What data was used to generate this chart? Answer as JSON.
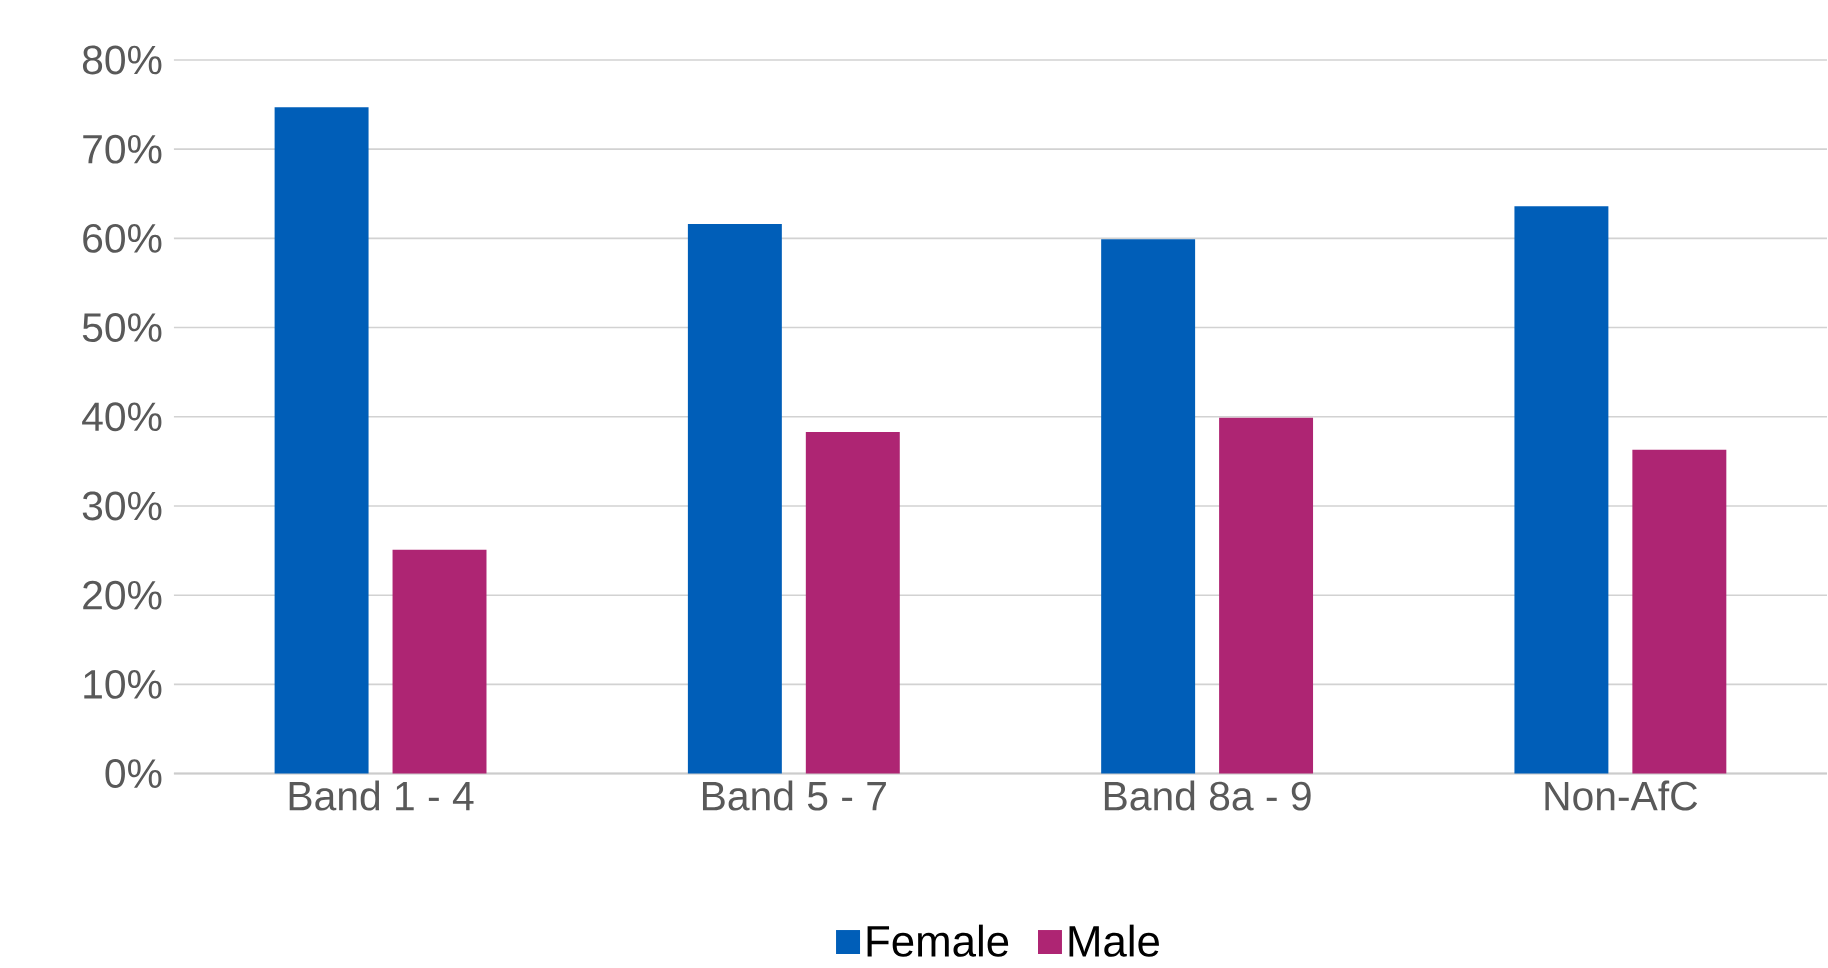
{
  "chart_data": {
    "type": "bar",
    "categories": [
      "Band 1 - 4",
      "Band 5 - 7",
      "Band 8a - 9",
      "Non-AfC"
    ],
    "series": [
      {
        "name": "Female",
        "color": "#005eb8",
        "values": [
          74.7,
          61.6,
          59.9,
          63.6
        ]
      },
      {
        "name": "Male",
        "color": "#ae2573",
        "values": [
          25.1,
          38.3,
          39.9,
          36.3
        ]
      }
    ],
    "ylim": [
      0,
      80
    ],
    "yticks": [
      {
        "value": 0,
        "label": "0%"
      },
      {
        "value": 10,
        "label": "10%"
      },
      {
        "value": 20,
        "label": "20%"
      },
      {
        "value": 30,
        "label": "30%"
      },
      {
        "value": 40,
        "label": "40%"
      },
      {
        "value": 50,
        "label": "50%"
      },
      {
        "value": 60,
        "label": "60%"
      },
      {
        "value": 70,
        "label": "70%"
      },
      {
        "value": 80,
        "label": "80%"
      }
    ],
    "grid": "y",
    "legend": "bottom"
  }
}
